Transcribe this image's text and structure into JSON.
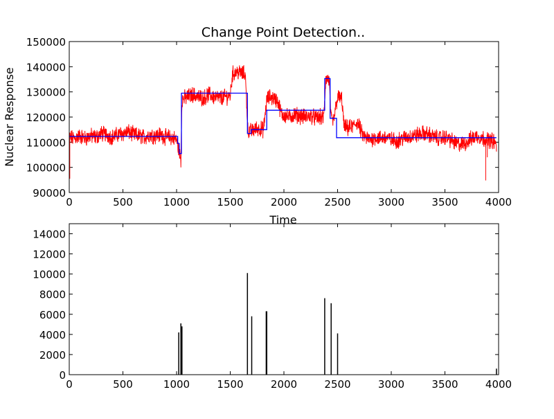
{
  "chart_data": [
    {
      "type": "line",
      "title": "Change Point Detection..",
      "xlabel": "Time",
      "ylabel": "Nuclear Response",
      "xlim": [
        0,
        4000
      ],
      "ylim": [
        90000,
        150000
      ],
      "x_ticks": [
        0,
        500,
        1000,
        1500,
        2000,
        2500,
        3000,
        3500,
        4000
      ],
      "y_ticks": [
        90000,
        100000,
        110000,
        120000,
        130000,
        140000,
        150000
      ],
      "x_tick_labels": [
        "0",
        "500",
        "1000",
        "1500",
        "2000",
        "2500",
        "3000",
        "3500",
        "4000"
      ],
      "y_tick_labels": [
        "90000",
        "100000",
        "110000",
        "120000",
        "130000",
        "140000",
        "150000"
      ],
      "grid": false,
      "series": [
        {
          "color": "#ff0000",
          "kind": "noisy-signal",
          "points": [
            [
              0,
              112000
            ],
            [
              40,
              111500
            ],
            [
              100,
              112500
            ],
            [
              150,
              111500
            ],
            [
              200,
              112500
            ],
            [
              250,
              112000
            ],
            [
              300,
              113500
            ],
            [
              350,
              113000
            ],
            [
              400,
              112000
            ],
            [
              450,
              113000
            ],
            [
              500,
              113500
            ],
            [
              550,
              114000
            ],
            [
              600,
              113000
            ],
            [
              650,
              112500
            ],
            [
              700,
              112000
            ],
            [
              750,
              113000
            ],
            [
              800,
              112500
            ],
            [
              850,
              113000
            ],
            [
              900,
              112000
            ],
            [
              950,
              112000
            ],
            [
              1000,
              111000
            ],
            [
              1025,
              106000
            ],
            [
              1040,
              103000
            ],
            [
              1050,
              127000
            ],
            [
              1100,
              128000
            ],
            [
              1150,
              129000
            ],
            [
              1200,
              128000
            ],
            [
              1250,
              127500
            ],
            [
              1300,
              129000
            ],
            [
              1350,
              128000
            ],
            [
              1400,
              127500
            ],
            [
              1450,
              128000
            ],
            [
              1500,
              128500
            ],
            [
              1520,
              137000
            ],
            [
              1560,
              138000
            ],
            [
              1600,
              137500
            ],
            [
              1640,
              137000
            ],
            [
              1665,
              114000
            ],
            [
              1700,
              114500
            ],
            [
              1750,
              115500
            ],
            [
              1810,
              115000
            ],
            [
              1840,
              127000
            ],
            [
              1870,
              128000
            ],
            [
              1900,
              127500
            ],
            [
              1940,
              126500
            ],
            [
              1980,
              121000
            ],
            [
              2050,
              120000
            ],
            [
              2100,
              121000
            ],
            [
              2150,
              120500
            ],
            [
              2200,
              120000
            ],
            [
              2250,
              120500
            ],
            [
              2300,
              119500
            ],
            [
              2340,
              120000
            ],
            [
              2370,
              119500
            ],
            [
              2390,
              135000
            ],
            [
              2420,
              135000
            ],
            [
              2440,
              119000
            ],
            [
              2460,
              118000
            ],
            [
              2500,
              128000
            ],
            [
              2540,
              127000
            ],
            [
              2560,
              116000
            ],
            [
              2600,
              115500
            ],
            [
              2650,
              116500
            ],
            [
              2680,
              118000
            ],
            [
              2700,
              116500
            ],
            [
              2720,
              114000
            ],
            [
              2750,
              112000
            ],
            [
              2800,
              111000
            ],
            [
              2850,
              112000
            ],
            [
              2900,
              111500
            ],
            [
              2950,
              112000
            ],
            [
              3000,
              111000
            ],
            [
              3050,
              110500
            ],
            [
              3100,
              111500
            ],
            [
              3150,
              112000
            ],
            [
              3200,
              112500
            ],
            [
              3250,
              113000
            ],
            [
              3300,
              113500
            ],
            [
              3350,
              113000
            ],
            [
              3400,
              112000
            ],
            [
              3450,
              111500
            ],
            [
              3500,
              112000
            ],
            [
              3550,
              111000
            ],
            [
              3600,
              109500
            ],
            [
              3650,
              109000
            ],
            [
              3700,
              110000
            ],
            [
              3750,
              111500
            ],
            [
              3800,
              112500
            ],
            [
              3850,
              111500
            ],
            [
              3900,
              111000
            ],
            [
              3950,
              110500
            ],
            [
              3980,
              109000
            ]
          ]
        },
        {
          "color": "#0000ff",
          "kind": "piecewise-constant-fit",
          "points": [
            [
              0,
              112300
            ],
            [
              1010,
              112300
            ],
            [
              1010,
              109500
            ],
            [
              1025,
              109500
            ],
            [
              1025,
              105500
            ],
            [
              1045,
              105500
            ],
            [
              1045,
              129500
            ],
            [
              1660,
              129500
            ],
            [
              1660,
              113500
            ],
            [
              1695,
              113500
            ],
            [
              1695,
              115000
            ],
            [
              1840,
              115000
            ],
            [
              1840,
              122700
            ],
            [
              2380,
              122700
            ],
            [
              2380,
              135300
            ],
            [
              2430,
              135300
            ],
            [
              2430,
              119500
            ],
            [
              2490,
              119500
            ],
            [
              2490,
              111800
            ],
            [
              3980,
              111800
            ]
          ]
        }
      ]
    },
    {
      "type": "bar",
      "xlim": [
        0,
        4000
      ],
      "ylim": [
        0,
        15000
      ],
      "x_ticks": [
        0,
        500,
        1000,
        1500,
        2000,
        2500,
        3000,
        3500,
        4000
      ],
      "y_ticks": [
        0,
        2000,
        4000,
        6000,
        8000,
        10000,
        12000,
        14000
      ],
      "x_tick_labels": [
        "0",
        "500",
        "1000",
        "1500",
        "2000",
        "2500",
        "3000",
        "3500",
        "4000"
      ],
      "y_tick_labels": [
        "0",
        "2000",
        "4000",
        "6000",
        "8000",
        "10000",
        "12000",
        "14000"
      ],
      "grid": false,
      "color": "#000000",
      "x": [
        1020,
        1040,
        1050,
        1660,
        1700,
        1835,
        1840,
        2380,
        2440,
        2500,
        3980
      ],
      "values": [
        4200,
        5100,
        4800,
        10100,
        5800,
        6300,
        6300,
        7600,
        7100,
        4100,
        600
      ]
    }
  ]
}
